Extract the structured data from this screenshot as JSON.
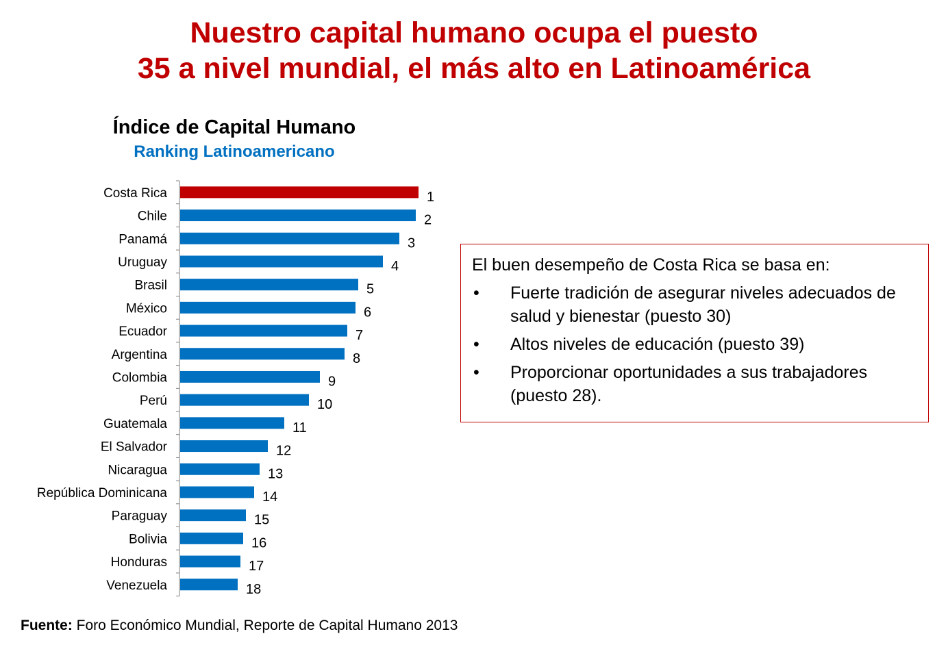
{
  "headline": {
    "line1": "Nuestro capital humano ocupa el puesto",
    "line2": "35 a nivel mundial, el más alto en Latinoamérica"
  },
  "chart_data": {
    "type": "bar",
    "orientation": "horizontal",
    "title": "Índice de Capital Humano",
    "subtitle": "Ranking Latinoamericano",
    "categories": [
      "Costa Rica",
      "Chile",
      "Panamá",
      "Uruguay",
      "Brasil",
      "México",
      "Ecuador",
      "Argentina",
      "Colombia",
      "Perú",
      "Guatemala",
      "El Salvador",
      "Nicaragua",
      "República Dominicana",
      "Paraguay",
      "Bolivia",
      "Honduras",
      "Venezuela"
    ],
    "series": [
      {
        "values": [
          87,
          86,
          80,
          74,
          65,
          64,
          61,
          60,
          51,
          47,
          38,
          32,
          29,
          27,
          24,
          23,
          22,
          21
        ]
      }
    ],
    "data_labels": [
      "1",
      "2",
      "3",
      "4",
      "5",
      "6",
      "7",
      "8",
      "9",
      "10",
      "11",
      "12",
      "13",
      "14",
      "15",
      "16",
      "17",
      "18"
    ],
    "xlim": [
      0,
      100
    ],
    "highlight_index": 0,
    "colors": {
      "highlight": "#c00000",
      "default": "#0070c0",
      "axis": "#7f7f7f"
    },
    "grid": false,
    "legend": "none"
  },
  "callout": {
    "intro": "El buen desempeño de Costa Rica se basa en:",
    "bullet_symbol": "•",
    "items": [
      "Fuerte tradición de asegurar niveles adecuados de salud y bienestar (puesto 30)",
      "Altos niveles de educación (puesto 39)",
      "Proporcionar oportunidades a sus trabajadores (puesto 28)."
    ]
  },
  "source": {
    "label": "Fuente:",
    "text": " Foro Económico Mundial, Reporte de Capital Humano 2013"
  }
}
